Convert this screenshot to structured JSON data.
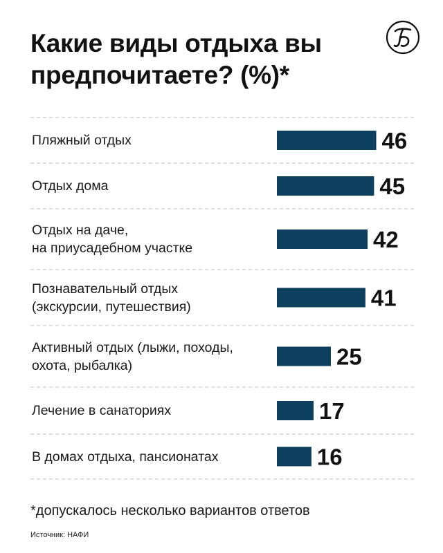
{
  "header": {
    "title_line1": "Какие виды отдыха вы",
    "title_line2": "предпочитаете? (%)*",
    "logo_icon": "newspaper-logo-icon"
  },
  "chart_data": {
    "type": "bar",
    "orientation": "horizontal",
    "title": "Какие виды отдыха вы предпочитаете? (%)*",
    "categories": [
      "Пляжный отдых",
      "Отдых дома",
      "Отдых на даче,\nна приусадебном участке",
      "Познавательный отдых\n(экскурсии, путешествия)",
      "Активный отдых (лыжи, походы,\nохота, рыбалка)",
      "Лечение в санаториях",
      "В домах отдыха, пансионатах"
    ],
    "values": [
      46,
      45,
      42,
      41,
      25,
      17,
      16
    ],
    "bar_color": "#0d3f5e",
    "grid": false
  },
  "footer": {
    "footnote": "*допускалось несколько вариантов ответов",
    "source": "Источник: НАФИ"
  }
}
